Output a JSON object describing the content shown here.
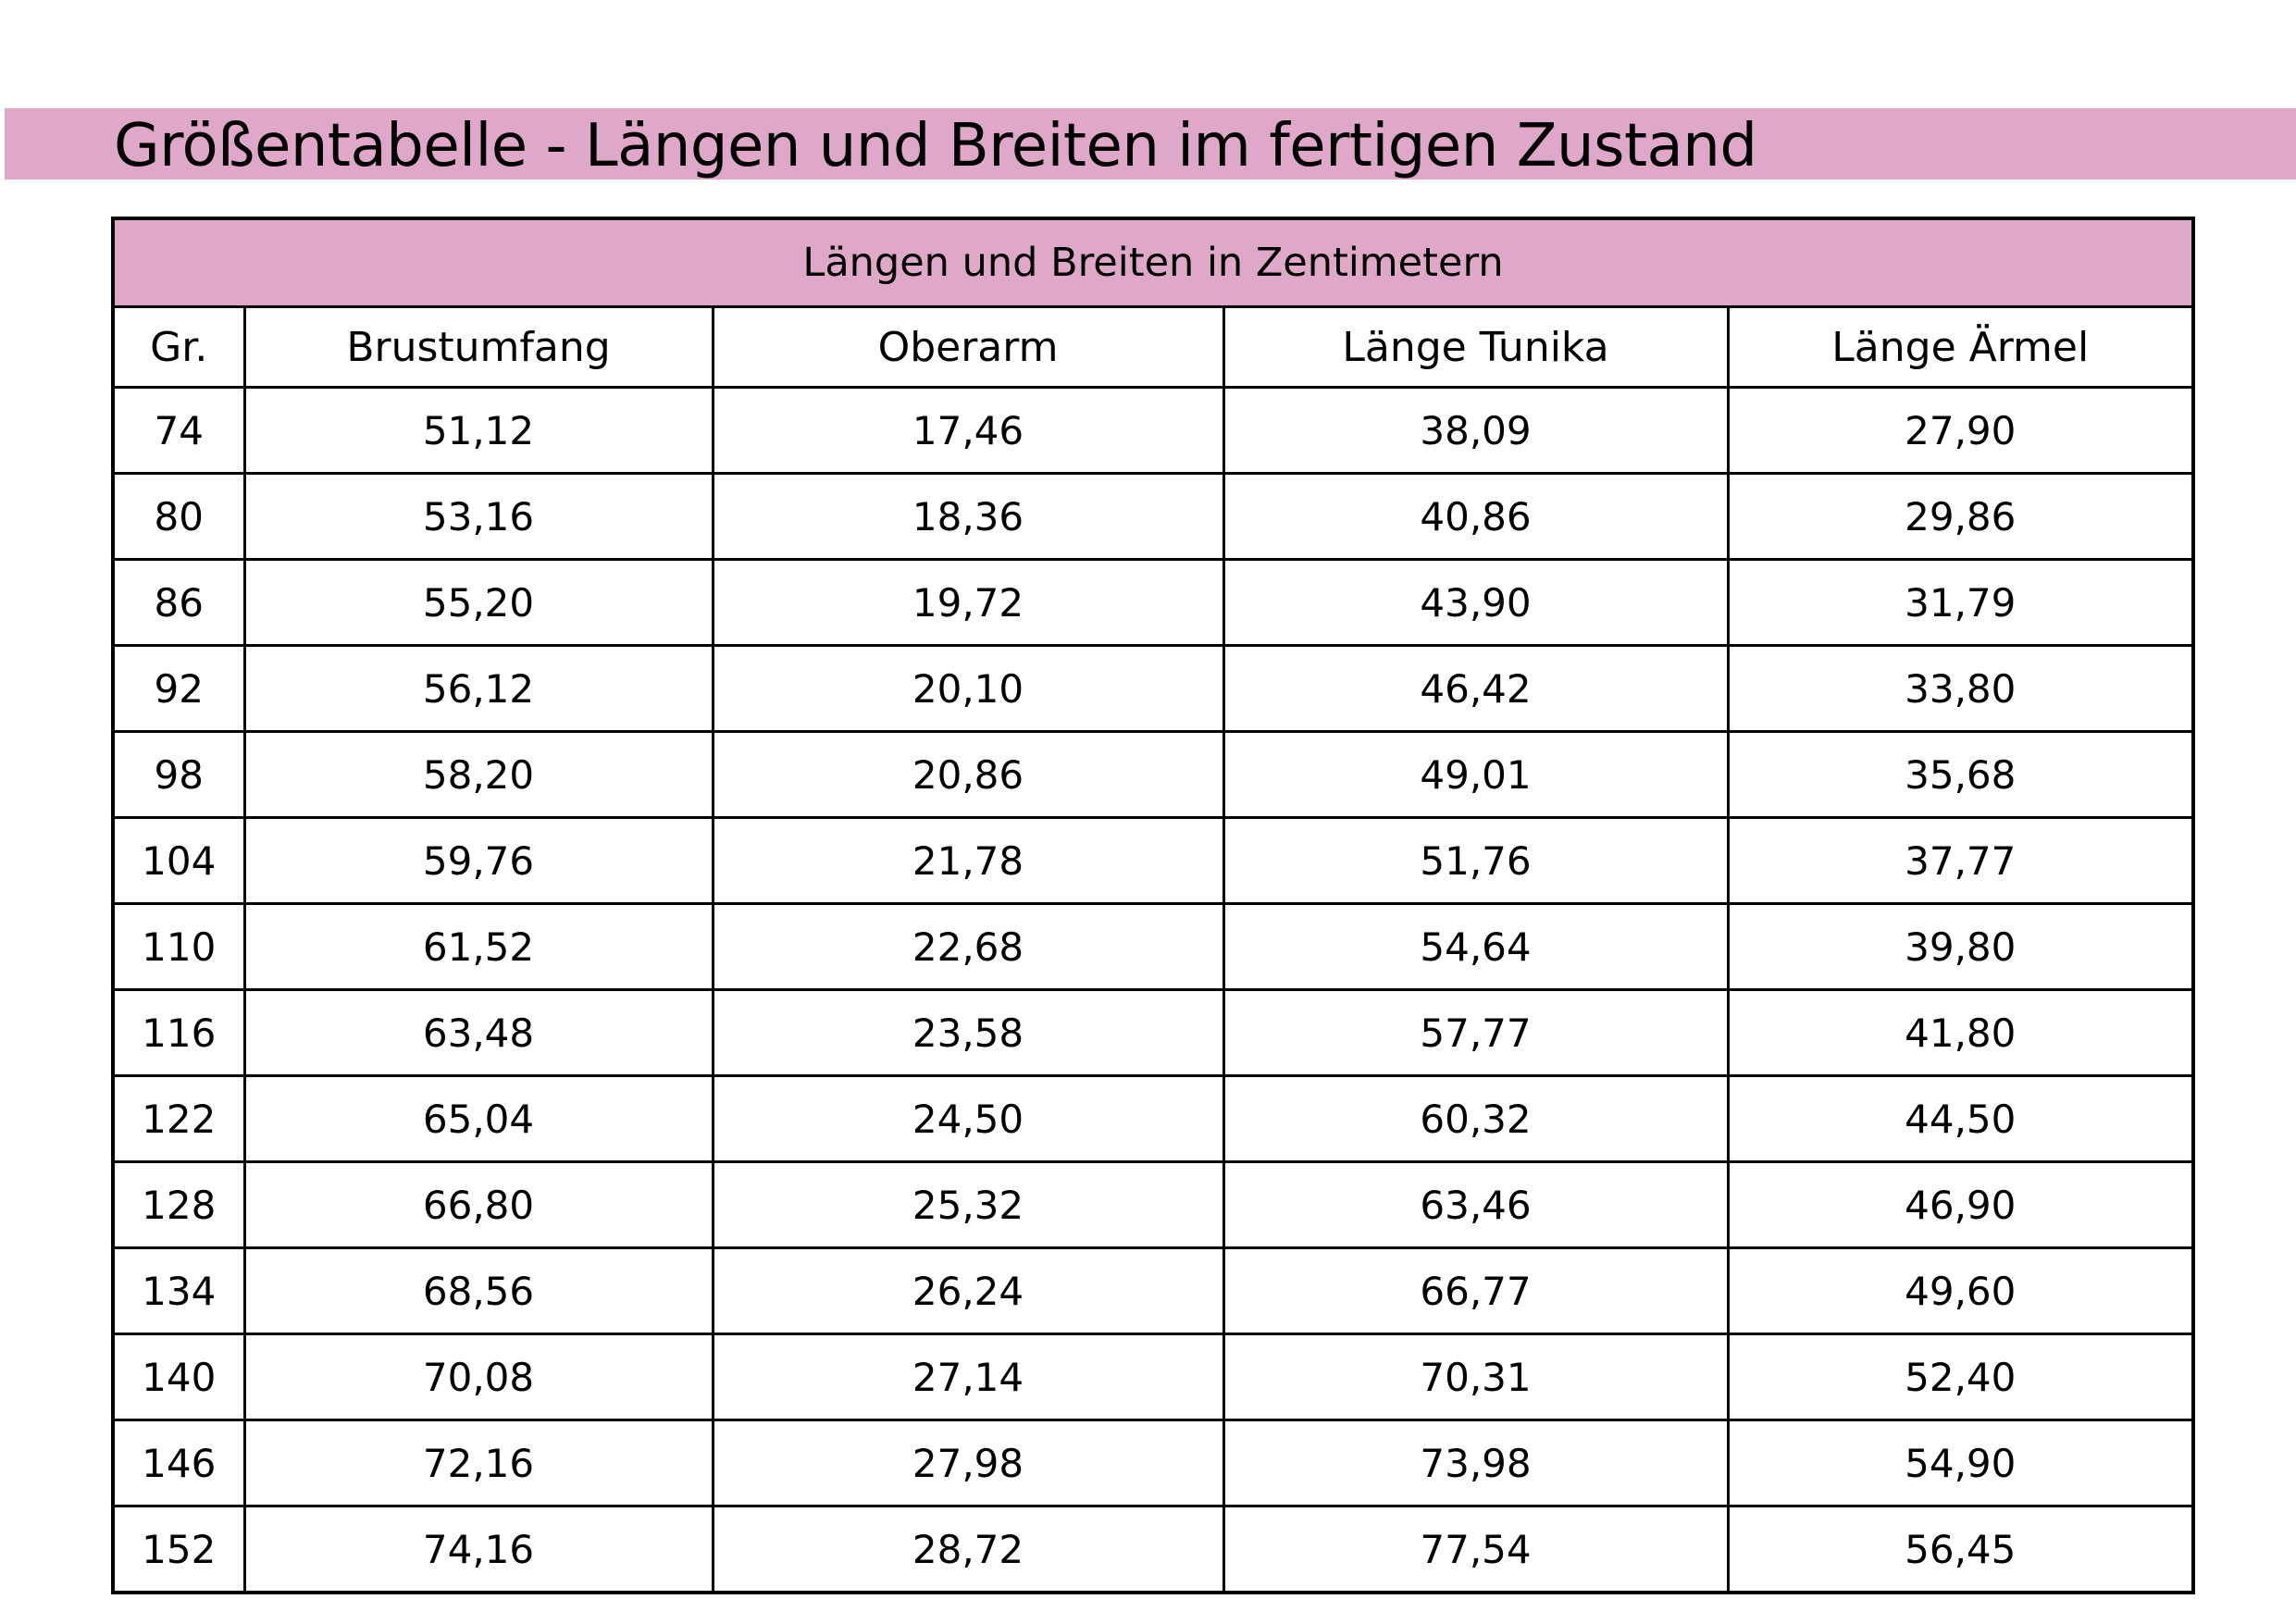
{
  "title": "Größentabelle - Längen und Breiten im fertigen Zustand",
  "colors": {
    "band": "#e0a8c8",
    "line": "#000000"
  },
  "table": {
    "caption": "Längen und Breiten in Zentimetern",
    "headers": [
      "Gr.",
      "Brustumfang",
      "Oberarm",
      "Länge Tunika",
      "Länge Ärmel"
    ],
    "rows": [
      [
        "74",
        "51,12",
        "17,46",
        "38,09",
        "27,90"
      ],
      [
        "80",
        "53,16",
        "18,36",
        "40,86",
        "29,86"
      ],
      [
        "86",
        "55,20",
        "19,72",
        "43,90",
        "31,79"
      ],
      [
        "92",
        "56,12",
        "20,10",
        "46,42",
        "33,80"
      ],
      [
        "98",
        "58,20",
        "20,86",
        "49,01",
        "35,68"
      ],
      [
        "104",
        "59,76",
        "21,78",
        "51,76",
        "37,77"
      ],
      [
        "110",
        "61,52",
        "22,68",
        "54,64",
        "39,80"
      ],
      [
        "116",
        "63,48",
        "23,58",
        "57,77",
        "41,80"
      ],
      [
        "122",
        "65,04",
        "24,50",
        "60,32",
        "44,50"
      ],
      [
        "128",
        "66,80",
        "25,32",
        "63,46",
        "46,90"
      ],
      [
        "134",
        "68,56",
        "26,24",
        "66,77",
        "49,60"
      ],
      [
        "140",
        "70,08",
        "27,14",
        "70,31",
        "52,40"
      ],
      [
        "146",
        "72,16",
        "27,98",
        "73,98",
        "54,90"
      ],
      [
        "152",
        "74,16",
        "28,72",
        "77,54",
        "56,45"
      ]
    ]
  }
}
